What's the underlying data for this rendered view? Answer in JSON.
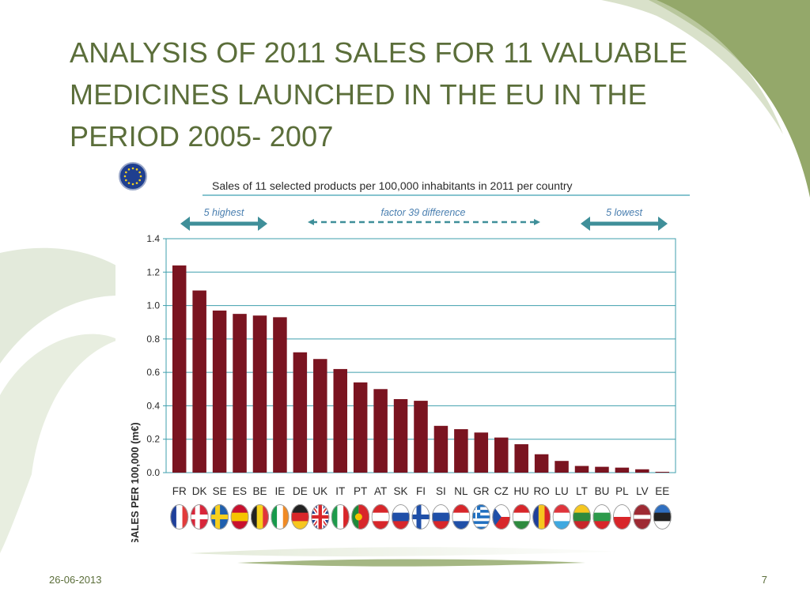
{
  "slide": {
    "title_lines": [
      "ANALYSIS OF 2011 SALES FOR 11 VALUABLE",
      "MEDICINES LAUNCHED IN THE EU IN THE",
      "PERIOD 2005- 2007"
    ],
    "date": "26-06-2013",
    "page_number": "7"
  },
  "figure": {
    "logo": "eu-stars-emblem",
    "caption": "Sales of 11 selected products per 100,000 inhabitants in 2011 per country",
    "annotations": {
      "left": "5 highest",
      "middle": "factor 39 difference",
      "right": "5 lowest"
    }
  },
  "colors": {
    "title": "#5b6e3a",
    "bar": "#7a1420",
    "axis_grid": "#3f9fad",
    "arrow": "#3f8f99",
    "decor_green": "#8fa664"
  },
  "chart_data": {
    "type": "bar",
    "title": "Sales of 11 selected products per 100,000 inhabitants in 2011 per country",
    "xlabel": "",
    "ylabel": "SALES PER 100,000 (m€)",
    "ylim": [
      0,
      1.4
    ],
    "yticks": [
      "0.0",
      "0.2",
      "0.4",
      "0.6",
      "0.8",
      "1.0",
      "1.2",
      "1.4"
    ],
    "grid": true,
    "categories": [
      "FR",
      "DK",
      "SE",
      "ES",
      "BE",
      "IE",
      "DE",
      "UK",
      "IT",
      "PT",
      "AT",
      "SK",
      "FI",
      "SI",
      "NL",
      "GR",
      "CZ",
      "HU",
      "RO",
      "LU",
      "LT",
      "BU",
      "PL",
      "LV",
      "EE"
    ],
    "values": [
      1.24,
      1.09,
      0.97,
      0.95,
      0.94,
      0.93,
      0.72,
      0.68,
      0.62,
      0.54,
      0.5,
      0.44,
      0.43,
      0.28,
      0.26,
      0.24,
      0.21,
      0.17,
      0.11,
      0.07,
      0.04,
      0.035,
      0.03,
      0.02,
      0.005
    ]
  },
  "flags": {
    "FR": {
      "kind": "v",
      "colors": [
        "#1f3f9a",
        "#ffffff",
        "#e23b3b"
      ]
    },
    "DK": {
      "kind": "nordic",
      "colors": [
        "#d8263a",
        "#ffffff"
      ]
    },
    "SE": {
      "kind": "nordic",
      "colors": [
        "#1f5fae",
        "#f7cf1d"
      ]
    },
    "ES": {
      "kind": "h",
      "colors": [
        "#c8102e",
        "#f6c400",
        "#c8102e"
      ]
    },
    "BE": {
      "kind": "v",
      "colors": [
        "#222222",
        "#f7d21d",
        "#e0343b"
      ]
    },
    "IE": {
      "kind": "v",
      "colors": [
        "#179a4b",
        "#ffffff",
        "#f08a24"
      ]
    },
    "DE": {
      "kind": "h",
      "colors": [
        "#222222",
        "#d8262a",
        "#f6c71f"
      ]
    },
    "UK": {
      "kind": "uk",
      "colors": [
        "#1f3a8a",
        "#ffffff",
        "#d8262a"
      ]
    },
    "IT": {
      "kind": "v",
      "colors": [
        "#1d9a4b",
        "#ffffff",
        "#d8262a"
      ]
    },
    "PT": {
      "kind": "pt",
      "colors": [
        "#1c8a3a",
        "#d8262a",
        "#f6c400"
      ]
    },
    "AT": {
      "kind": "h",
      "colors": [
        "#d8262a",
        "#ffffff",
        "#d8262a"
      ]
    },
    "SK": {
      "kind": "h",
      "colors": [
        "#ffffff",
        "#1f4fa8",
        "#d8262a"
      ]
    },
    "FI": {
      "kind": "nordic",
      "colors": [
        "#ffffff",
        "#1f4fa8"
      ]
    },
    "SI": {
      "kind": "h",
      "colors": [
        "#ffffff",
        "#1f4fa8",
        "#d8262a"
      ]
    },
    "NL": {
      "kind": "h",
      "colors": [
        "#d8262a",
        "#ffffff",
        "#1f4fa8"
      ]
    },
    "GR": {
      "kind": "gr",
      "colors": [
        "#1f6fc0",
        "#ffffff"
      ]
    },
    "CZ": {
      "kind": "cz",
      "colors": [
        "#ffffff",
        "#d8262a",
        "#1f4fa8"
      ]
    },
    "HU": {
      "kind": "h",
      "colors": [
        "#d8262a",
        "#ffffff",
        "#2d8a3e"
      ]
    },
    "RO": {
      "kind": "v",
      "colors": [
        "#1f3f9a",
        "#f6c71f",
        "#d8262a"
      ]
    },
    "LU": {
      "kind": "h",
      "colors": [
        "#e0343b",
        "#ffffff",
        "#3ea8e0"
      ]
    },
    "LT": {
      "kind": "h",
      "colors": [
        "#f6c71f",
        "#2d8a3e",
        "#c8262a"
      ]
    },
    "BU": {
      "kind": "h",
      "colors": [
        "#ffffff",
        "#2d9a4b",
        "#d8262a"
      ]
    },
    "PL": {
      "kind": "h2",
      "colors": [
        "#ffffff",
        "#d8262a"
      ]
    },
    "LV": {
      "kind": "lv",
      "colors": [
        "#9e2a33",
        "#ffffff"
      ]
    },
    "EE": {
      "kind": "h",
      "colors": [
        "#2f6fc0",
        "#222222",
        "#ffffff"
      ]
    }
  }
}
